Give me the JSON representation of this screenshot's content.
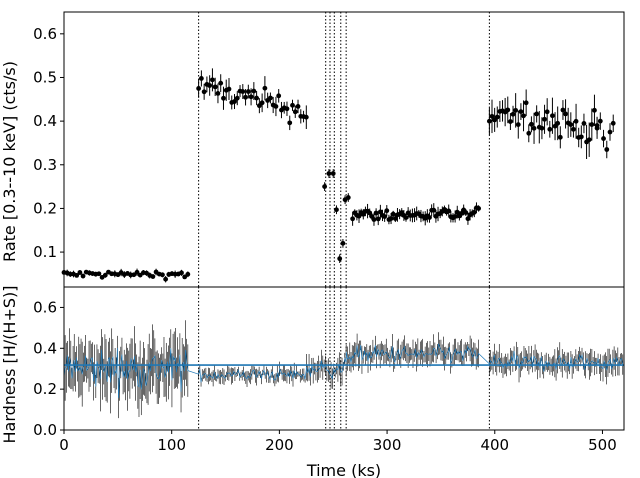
{
  "chart_data": [
    {
      "type": "scatter",
      "panel": "rate",
      "ylabel": "Rate [0.3--10 keV] (cts/s)",
      "xlim": [
        0,
        520
      ],
      "ylim": [
        0.02,
        0.65
      ],
      "yticks": [
        0.1,
        0.2,
        0.3,
        0.4,
        0.5,
        0.6
      ],
      "ytick_labels": [
        "0.1",
        "0.2",
        "0.3",
        "0.4",
        "0.5",
        "0.6"
      ],
      "marker_color": "#000000",
      "segments": [
        {
          "x_range": [
            0,
            115
          ],
          "mean": 0.049,
          "scatter": 0.006,
          "err": 0.006,
          "n": 40
        },
        {
          "x_range": [
            125,
            225
          ],
          "mean": 0.48,
          "scatter": 0.02,
          "trend": -0.0006,
          "err": 0.02,
          "n": 40
        },
        {
          "x_range": [
            242,
            262
          ],
          "values": [
            [
              242,
              0.25
            ],
            [
              246,
              0.28
            ],
            [
              250,
              0.28
            ],
            [
              253,
              0.197
            ],
            [
              256,
              0.085
            ],
            [
              259,
              0.12
            ],
            [
              261,
              0.22
            ],
            [
              264,
              0.225
            ]
          ],
          "err": 0.01
        },
        {
          "x_range": [
            268,
            385
          ],
          "mean": 0.185,
          "scatter": 0.01,
          "err": 0.012,
          "n": 60
        },
        {
          "x_range": [
            395,
            495
          ],
          "mean": 0.43,
          "scatter": 0.025,
          "trend": -0.0005,
          "err": 0.03,
          "n": 42
        },
        {
          "x_range": [
            495,
            510
          ],
          "values": [
            [
              495,
              0.39
            ],
            [
              498,
              0.4
            ],
            [
              501,
              0.36
            ],
            [
              504,
              0.335
            ],
            [
              507,
              0.375
            ],
            [
              510,
              0.395
            ]
          ],
          "err": 0.02
        }
      ]
    },
    {
      "type": "line",
      "panel": "hardness",
      "xlabel": "Time (ks)",
      "ylabel": "Hardness [H/(H+S)]",
      "xlim": [
        0,
        520
      ],
      "ylim": [
        0.0,
        0.7
      ],
      "xticks": [
        0,
        100,
        200,
        300,
        400,
        500
      ],
      "xtick_labels": [
        "0",
        "100",
        "200",
        "300",
        "400",
        "500"
      ],
      "yticks": [
        0.0,
        0.2,
        0.4,
        0.6
      ],
      "ytick_labels": [
        "0.0",
        "0.2",
        "0.4",
        "0.6"
      ],
      "mean_line": 0.318,
      "line_color": "#1f77b4",
      "segments": [
        {
          "x_range": [
            0,
            115
          ],
          "mean": 0.3,
          "scatter": 0.07,
          "err": 0.12,
          "n": 110
        },
        {
          "x_range": [
            125,
            225
          ],
          "mean": 0.27,
          "scatter": 0.02,
          "err": 0.03,
          "n": 90
        },
        {
          "x_range": [
            225,
            262
          ],
          "mean": 0.3,
          "scatter": 0.03,
          "err": 0.05,
          "n": 30
        },
        {
          "x_range": [
            262,
            385
          ],
          "mean": 0.37,
          "scatter": 0.03,
          "err": 0.05,
          "n": 110
        },
        {
          "x_range": [
            395,
            520
          ],
          "mean": 0.33,
          "scatter": 0.03,
          "err": 0.05,
          "n": 110
        }
      ]
    }
  ],
  "vertical_markers": [
    125,
    243,
    247,
    251,
    257,
    262,
    395
  ],
  "marker_style": "dotted",
  "colors": {
    "points": "#000000",
    "hardness": "#1f77b4",
    "axes": "#000000",
    "background": "#ffffff"
  }
}
